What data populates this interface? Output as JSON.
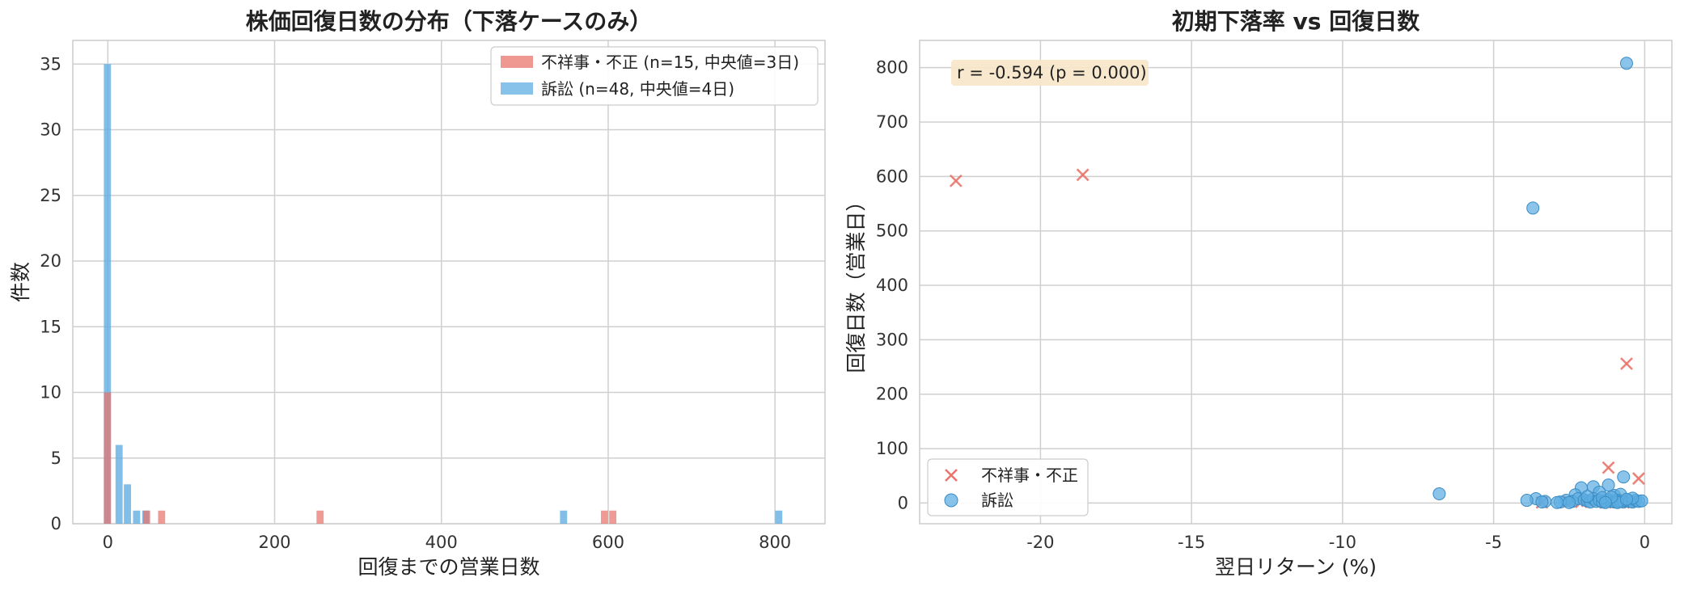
{
  "colors": {
    "scandal": "#e8756c",
    "lawsuit": "#5dade2",
    "overlap": "#6a7fa0",
    "grid": "#cfcfcf",
    "annot_bg": "#f7e6c8"
  },
  "chart_data": [
    {
      "type": "bar",
      "title": "株価回復日数の分布（下落ケースのみ）",
      "xlabel": "回復までの営業日数",
      "ylabel": "件数",
      "xlim": [
        -42,
        860
      ],
      "ylim": [
        0,
        36.8
      ],
      "xticks": [
        0,
        200,
        400,
        600,
        800
      ],
      "yticks": [
        0,
        5,
        10,
        15,
        20,
        25,
        30,
        35
      ],
      "bin_width": 9.5,
      "grid": true,
      "legend_position": "top-right",
      "series": [
        {
          "name": "不祥事・不正 (n=15, 中央値=3日)",
          "color_key": "scandal",
          "bins": [
            {
              "x": 0,
              "count": 10
            },
            {
              "x": 47,
              "count": 1
            },
            {
              "x": 65,
              "count": 1
            },
            {
              "x": 255,
              "count": 1
            },
            {
              "x": 596,
              "count": 1
            },
            {
              "x": 606,
              "count": 1
            }
          ]
        },
        {
          "name": "訴訟 (n=48, 中央値=4日)",
          "color_key": "lawsuit",
          "bins": [
            {
              "x": 0,
              "count": 35
            },
            {
              "x": 14,
              "count": 6
            },
            {
              "x": 24,
              "count": 3
            },
            {
              "x": 35,
              "count": 1
            },
            {
              "x": 46,
              "count": 1
            },
            {
              "x": 547,
              "count": 1
            },
            {
              "x": 805,
              "count": 1
            }
          ]
        }
      ]
    },
    {
      "type": "scatter",
      "title": "初期下落率 vs 回復日数",
      "xlabel": "翌日リターン (%)",
      "ylabel": "回復日数（営業日）",
      "xlim": [
        -24.0,
        0.9
      ],
      "ylim": [
        -38,
        850
      ],
      "xticks": [
        -20,
        -15,
        -10,
        -5,
        0
      ],
      "yticks": [
        0,
        100,
        200,
        300,
        400,
        500,
        600,
        700,
        800
      ],
      "grid": true,
      "legend_position": "bottom-left",
      "annotation": "r = -0.594 (p = 0.000)",
      "series": [
        {
          "name": "不祥事・不正",
          "marker": "x",
          "color_key": "scandal",
          "points": [
            {
              "x": -22.8,
              "y": 592
            },
            {
              "x": -18.6,
              "y": 603
            },
            {
              "x": -0.6,
              "y": 256
            },
            {
              "x": -1.2,
              "y": 65
            },
            {
              "x": -0.2,
              "y": 45
            },
            {
              "x": -2.5,
              "y": 3
            },
            {
              "x": -2.1,
              "y": 2
            },
            {
              "x": -1.6,
              "y": 5
            },
            {
              "x": -1.3,
              "y": 1
            },
            {
              "x": -0.9,
              "y": 3
            },
            {
              "x": -0.5,
              "y": 2
            },
            {
              "x": -3.4,
              "y": 1
            },
            {
              "x": -1.9,
              "y": 4
            },
            {
              "x": -0.7,
              "y": 1
            },
            {
              "x": -1.1,
              "y": 2
            }
          ]
        },
        {
          "name": "訴訟",
          "marker": "o",
          "color_key": "lawsuit",
          "points": [
            {
              "x": -0.6,
              "y": 808
            },
            {
              "x": -3.7,
              "y": 542
            },
            {
              "x": -6.8,
              "y": 17
            },
            {
              "x": -0.7,
              "y": 48
            },
            {
              "x": -1.2,
              "y": 33
            },
            {
              "x": -2.1,
              "y": 28
            },
            {
              "x": -1.7,
              "y": 30
            },
            {
              "x": -1.5,
              "y": 20
            },
            {
              "x": -2.3,
              "y": 15
            },
            {
              "x": -1.0,
              "y": 14
            },
            {
              "x": -0.8,
              "y": 16
            },
            {
              "x": -3.6,
              "y": 8
            },
            {
              "x": -3.9,
              "y": 5
            },
            {
              "x": -3.3,
              "y": 3
            },
            {
              "x": -2.6,
              "y": 5
            },
            {
              "x": -2.4,
              "y": 3
            },
            {
              "x": -2.2,
              "y": 8
            },
            {
              "x": -2.0,
              "y": 6
            },
            {
              "x": -1.9,
              "y": 4
            },
            {
              "x": -1.8,
              "y": 2
            },
            {
              "x": -1.7,
              "y": 8
            },
            {
              "x": -1.6,
              "y": 3
            },
            {
              "x": -1.5,
              "y": 5
            },
            {
              "x": -1.4,
              "y": 2
            },
            {
              "x": -1.3,
              "y": 4
            },
            {
              "x": -1.2,
              "y": 6
            },
            {
              "x": -1.1,
              "y": 3
            },
            {
              "x": -1.0,
              "y": 2
            },
            {
              "x": -0.9,
              "y": 5
            },
            {
              "x": -0.8,
              "y": 3
            },
            {
              "x": -0.7,
              "y": 2
            },
            {
              "x": -0.6,
              "y": 4
            },
            {
              "x": -0.5,
              "y": 3
            },
            {
              "x": -0.4,
              "y": 2
            },
            {
              "x": -0.3,
              "y": 5
            },
            {
              "x": -0.2,
              "y": 3
            },
            {
              "x": -0.1,
              "y": 4
            },
            {
              "x": -2.8,
              "y": 2
            },
            {
              "x": -3.4,
              "y": 2
            },
            {
              "x": -2.9,
              "y": 1
            },
            {
              "x": -1.4,
              "y": 10
            },
            {
              "x": -0.9,
              "y": 1
            },
            {
              "x": -0.4,
              "y": 9
            },
            {
              "x": -1.1,
              "y": 11
            },
            {
              "x": -1.9,
              "y": 12
            },
            {
              "x": -0.6,
              "y": 7
            },
            {
              "x": -2.5,
              "y": 1
            },
            {
              "x": -1.3,
              "y": 1
            }
          ]
        }
      ]
    }
  ]
}
